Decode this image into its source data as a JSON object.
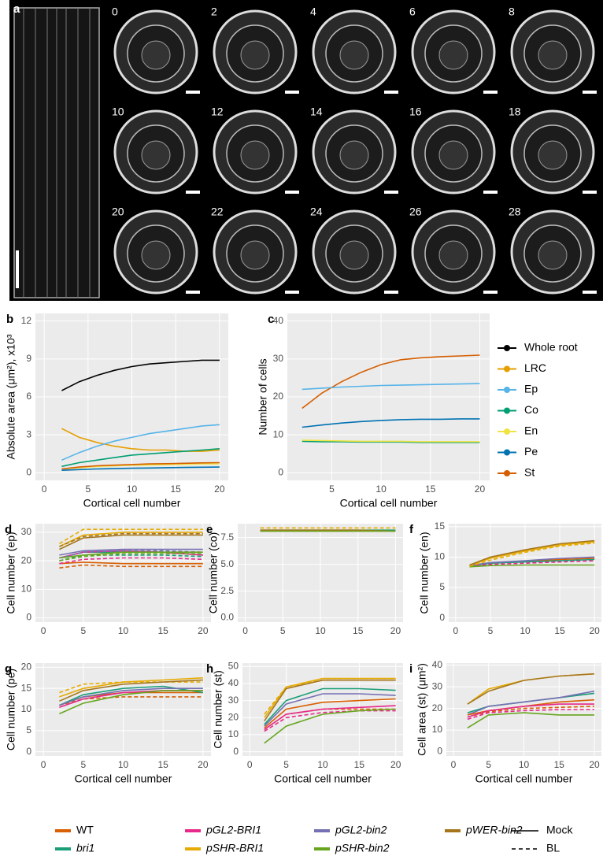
{
  "figure": {
    "panel_a": {
      "label": "a",
      "timepoints": [
        "0",
        "2",
        "4",
        "6",
        "8",
        "10",
        "12",
        "14",
        "16",
        "18",
        "20",
        "22",
        "24",
        "26",
        "28"
      ]
    },
    "legend": {
      "genotypes": [
        {
          "name": "WT",
          "color": "#d95f02",
          "italic": false
        },
        {
          "name": "bri1",
          "color": "#1b9e77",
          "italic": true
        },
        {
          "name": "pGL2-BRI1",
          "color": "#e7298a",
          "italic": true
        },
        {
          "name": "pSHR-BRI1",
          "color": "#e6ab02",
          "italic": true
        },
        {
          "name": "pGL2-bin2",
          "color": "#7570b3",
          "italic": true
        },
        {
          "name": "pSHR-bin2",
          "color": "#66a61e",
          "italic": true
        },
        {
          "name": "pWER-bin2",
          "color": "#a6761d",
          "italic": true
        }
      ],
      "treatments": [
        {
          "name": "Mock",
          "dashed": false
        },
        {
          "name": "BL",
          "dashed": true
        }
      ]
    }
  },
  "chart_data": [
    {
      "type": "line",
      "panel": "b",
      "xlabel": "Cortical cell number",
      "ylabel": "Absolute area (μm²), x10³",
      "xlim": [
        -1,
        21
      ],
      "ylim": [
        -0.6,
        12.6
      ],
      "xticks": [
        0,
        5,
        10,
        15,
        20
      ],
      "yticks": [
        0,
        3,
        6,
        9,
        12
      ],
      "grid": true,
      "x": [
        2,
        4,
        6,
        8,
        10,
        12,
        14,
        16,
        18,
        20
      ],
      "series": [
        {
          "name": "Whole root",
          "color": "#000000",
          "values": [
            6.5,
            7.2,
            7.7,
            8.1,
            8.4,
            8.6,
            8.7,
            8.8,
            8.9,
            8.9
          ]
        },
        {
          "name": "LRC",
          "color": "#e69f00",
          "values": [
            3.5,
            2.8,
            2.4,
            2.1,
            1.9,
            1.8,
            1.8,
            1.7,
            1.7,
            1.8
          ]
        },
        {
          "name": "Ep",
          "color": "#56b4e9",
          "values": [
            1.0,
            1.6,
            2.1,
            2.5,
            2.8,
            3.1,
            3.3,
            3.5,
            3.7,
            3.8
          ]
        },
        {
          "name": "Co",
          "color": "#009e73",
          "values": [
            0.5,
            0.8,
            1.0,
            1.2,
            1.4,
            1.5,
            1.6,
            1.7,
            1.8,
            1.9
          ]
        },
        {
          "name": "En",
          "color": "#f0e442",
          "values": [
            0.3,
            0.4,
            0.5,
            0.55,
            0.6,
            0.62,
            0.65,
            0.67,
            0.7,
            0.7
          ]
        },
        {
          "name": "Pe",
          "color": "#0072b2",
          "values": [
            0.2,
            0.25,
            0.3,
            0.33,
            0.36,
            0.38,
            0.4,
            0.42,
            0.44,
            0.45
          ]
        },
        {
          "name": "St",
          "color": "#d55e00",
          "values": [
            0.3,
            0.45,
            0.55,
            0.6,
            0.65,
            0.7,
            0.72,
            0.75,
            0.78,
            0.8
          ]
        }
      ]
    },
    {
      "type": "line",
      "panel": "c",
      "xlabel": "Cortical cell number",
      "ylabel": "Number of cells",
      "xlim": [
        0.5,
        21
      ],
      "ylim": [
        -2,
        42
      ],
      "xticks": [
        5,
        10,
        15,
        20
      ],
      "yticks": [
        0,
        10,
        20,
        30,
        40
      ],
      "grid": true,
      "x": [
        2,
        4,
        6,
        8,
        10,
        12,
        14,
        16,
        18,
        20
      ],
      "series": [
        {
          "color": "#d55e00",
          "values": [
            17,
            21,
            24,
            26.5,
            28.5,
            29.8,
            30.3,
            30.6,
            30.8,
            31
          ]
        },
        {
          "color": "#56b4e9",
          "values": [
            22,
            22.3,
            22.6,
            22.8,
            23,
            23.1,
            23.2,
            23.3,
            23.4,
            23.5
          ]
        },
        {
          "color": "#0072b2",
          "values": [
            12,
            12.6,
            13.1,
            13.5,
            13.8,
            14,
            14.1,
            14.1,
            14.2,
            14.2
          ]
        },
        {
          "color": "#009e73",
          "values": [
            8.3,
            8.2,
            8.2,
            8.1,
            8.1,
            8.1,
            8.0,
            8.0,
            8.0,
            8.0
          ]
        },
        {
          "color": "#f0e442",
          "values": [
            8.6,
            8.5,
            8.4,
            8.3,
            8.3,
            8.3,
            8.2,
            8.2,
            8.2,
            8.2
          ]
        }
      ]
    },
    {
      "type": "line",
      "panel": "d",
      "ylabel": "Cell number (ep)",
      "xlim": [
        -1,
        21
      ],
      "ylim": [
        -1.5,
        33
      ],
      "xticks": [
        0,
        5,
        10,
        15,
        20
      ],
      "yticks": [
        0,
        10,
        20,
        30
      ],
      "grid": true,
      "x": [
        2,
        5,
        10,
        15,
        20
      ],
      "series": [
        {
          "color": "#d95f02",
          "dashed": false,
          "values": [
            19,
            19.5,
            19,
            19,
            19
          ]
        },
        {
          "color": "#d95f02",
          "dashed": true,
          "values": [
            17.5,
            18.5,
            18,
            18,
            18
          ]
        },
        {
          "color": "#1b9e77",
          "dashed": false,
          "values": [
            21,
            23,
            23,
            23,
            22
          ]
        },
        {
          "color": "#1b9e77",
          "dashed": true,
          "values": [
            20,
            22,
            22,
            22,
            21.5
          ]
        },
        {
          "color": "#e7298a",
          "dashed": false,
          "values": [
            21,
            23,
            23.5,
            23,
            22
          ]
        },
        {
          "color": "#e7298a",
          "dashed": true,
          "values": [
            19,
            20.5,
            21,
            21,
            20.5
          ]
        },
        {
          "color": "#e6ab02",
          "dashed": false,
          "values": [
            25,
            29,
            30,
            30,
            30
          ]
        },
        {
          "color": "#e6ab02",
          "dashed": true,
          "values": [
            26,
            31,
            31,
            31,
            31
          ]
        },
        {
          "color": "#7570b3",
          "dashed": false,
          "values": [
            22,
            23.5,
            24,
            24,
            24
          ]
        },
        {
          "color": "#7570b3",
          "dashed": true,
          "values": [
            21,
            23,
            23.5,
            23.5,
            23
          ]
        },
        {
          "color": "#66a61e",
          "dashed": false,
          "values": [
            21,
            22,
            23,
            23,
            23
          ]
        },
        {
          "color": "#66a61e",
          "dashed": true,
          "values": [
            20,
            21.5,
            22.5,
            22.5,
            22.5
          ]
        },
        {
          "color": "#a6761d",
          "dashed": false,
          "values": [
            24,
            28,
            29,
            29,
            29
          ]
        },
        {
          "color": "#a6761d",
          "dashed": true,
          "values": [
            25,
            28.5,
            29.5,
            29.5,
            29.5
          ]
        }
      ]
    },
    {
      "type": "line",
      "panel": "e",
      "ylabel": "Cell number (co)",
      "xlim": [
        -1,
        21
      ],
      "ylim": [
        -0.4,
        8.8
      ],
      "xticks": [
        0,
        5,
        10,
        15,
        20
      ],
      "yticks": [
        {
          "value": 0,
          "label": "0.0"
        },
        {
          "value": 2.5,
          "label": "2.5"
        },
        {
          "value": 5,
          "label": "5.0"
        },
        {
          "value": 7.5,
          "label": "7.5"
        }
      ],
      "grid": true,
      "x": [
        2,
        5,
        10,
        15,
        20
      ],
      "series": [
        {
          "color": "#d95f02",
          "dashed": false,
          "values": [
            8.1,
            8.1,
            8.1,
            8.1,
            8.1
          ]
        },
        {
          "color": "#1b9e77",
          "dashed": false,
          "values": [
            8.2,
            8.2,
            8.2,
            8.2,
            8.2
          ]
        },
        {
          "color": "#e6ab02",
          "dashed": true,
          "values": [
            8.4,
            8.4,
            8.4,
            8.4,
            8.4
          ]
        },
        {
          "color": "#a6761d",
          "dashed": false,
          "values": [
            8.2,
            8.2,
            8.2,
            8.2,
            8.1
          ]
        },
        {
          "color": "#66a61e",
          "dashed": false,
          "values": [
            8.1,
            8.1,
            8.1,
            8.1,
            8.1
          ]
        }
      ]
    },
    {
      "type": "line",
      "panel": "f",
      "ylabel": "Cell number (en)",
      "xlim": [
        -1,
        21
      ],
      "ylim": [
        -0.7,
        15.5
      ],
      "xticks": [
        0,
        5,
        10,
        15,
        20
      ],
      "yticks": [
        0,
        5,
        10,
        15
      ],
      "grid": true,
      "x": [
        2,
        5,
        10,
        15,
        20
      ],
      "series": [
        {
          "color": "#d95f02",
          "dashed": false,
          "values": [
            8.5,
            9,
            9.3,
            9.6,
            9.8
          ]
        },
        {
          "color": "#1b9e77",
          "dashed": false,
          "values": [
            8.5,
            9,
            9.2,
            9.4,
            9.6
          ]
        },
        {
          "color": "#e7298a",
          "dashed": true,
          "values": [
            8.5,
            8.8,
            9,
            9.2,
            9.4
          ]
        },
        {
          "color": "#7570b3",
          "dashed": false,
          "values": [
            8.6,
            9.1,
            9.4,
            9.8,
            10
          ]
        },
        {
          "color": "#66a61e",
          "dashed": false,
          "values": [
            8.4,
            8.6,
            8.7,
            8.7,
            8.7
          ]
        },
        {
          "color": "#e6ab02",
          "dashed": false,
          "values": [
            8.6,
            9.8,
            11,
            12,
            12.5
          ]
        },
        {
          "color": "#e6ab02",
          "dashed": true,
          "values": [
            8.5,
            9.5,
            10.8,
            11.8,
            12.3
          ]
        },
        {
          "color": "#a6761d",
          "dashed": false,
          "values": [
            8.7,
            10,
            11.2,
            12.2,
            12.7
          ]
        }
      ]
    },
    {
      "type": "line",
      "panel": "g",
      "ylabel": "Cell number (pe)",
      "xlabel": "Cortical cell number",
      "xlim": [
        -1,
        21
      ],
      "ylim": [
        -1,
        21
      ],
      "xticks": [
        0,
        5,
        10,
        15,
        20
      ],
      "yticks": [
        0,
        5,
        10,
        15,
        20
      ],
      "grid": true,
      "x": [
        2,
        5,
        10,
        15,
        20
      ],
      "series": [
        {
          "color": "#d95f02",
          "dashed": false,
          "values": [
            11,
            13,
            14,
            14,
            14
          ]
        },
        {
          "color": "#d95f02",
          "dashed": true,
          "values": [
            11,
            12.5,
            13,
            13,
            13
          ]
        },
        {
          "color": "#1b9e77",
          "dashed": false,
          "values": [
            11,
            13.5,
            15,
            15.5,
            14
          ]
        },
        {
          "color": "#e7298a",
          "dashed": false,
          "values": [
            10.5,
            12.5,
            14,
            14.5,
            14.5
          ]
        },
        {
          "color": "#7570b3",
          "dashed": false,
          "values": [
            11,
            13,
            14.5,
            15,
            15
          ]
        },
        {
          "color": "#66a61e",
          "dashed": false,
          "values": [
            9,
            11.5,
            13.5,
            14.5,
            14.5
          ]
        },
        {
          "color": "#e6ab02",
          "dashed": false,
          "values": [
            13,
            15,
            16.5,
            17,
            17.5
          ]
        },
        {
          "color": "#e6ab02",
          "dashed": true,
          "values": [
            14,
            16,
            16.5,
            16.5,
            16.5
          ]
        },
        {
          "color": "#a6761d",
          "dashed": false,
          "values": [
            12,
            14.5,
            16,
            16.5,
            17
          ]
        }
      ]
    },
    {
      "type": "line",
      "panel": "h",
      "ylabel": "Cell number (st)",
      "xlabel": "Cortical cell number",
      "xlim": [
        -1,
        21
      ],
      "ylim": [
        -2.5,
        52
      ],
      "xticks": [
        0,
        5,
        10,
        15,
        20
      ],
      "yticks": [
        0,
        10,
        20,
        30,
        40,
        50
      ],
      "grid": true,
      "x": [
        2,
        5,
        10,
        15,
        20
      ],
      "series": [
        {
          "color": "#e6ab02",
          "dashed": false,
          "values": [
            20,
            38,
            43,
            43,
            43
          ]
        },
        {
          "color": "#e6ab02",
          "dashed": true,
          "values": [
            22,
            38,
            42,
            42,
            42
          ]
        },
        {
          "color": "#a6761d",
          "dashed": false,
          "values": [
            18,
            37,
            42,
            42,
            42
          ]
        },
        {
          "color": "#1b9e77",
          "dashed": false,
          "values": [
            16,
            30,
            37,
            37,
            36
          ]
        },
        {
          "color": "#7570b3",
          "dashed": false,
          "values": [
            15,
            28,
            34,
            34,
            33
          ]
        },
        {
          "color": "#d95f02",
          "dashed": false,
          "values": [
            14,
            25,
            29,
            30,
            31
          ]
        },
        {
          "color": "#d95f02",
          "dashed": true,
          "values": [
            13,
            22,
            25,
            25,
            25
          ]
        },
        {
          "color": "#e7298a",
          "dashed": false,
          "values": [
            13,
            22,
            25,
            26,
            27
          ]
        },
        {
          "color": "#e7298a",
          "dashed": true,
          "values": [
            12,
            20,
            23,
            24,
            24
          ]
        },
        {
          "color": "#66a61e",
          "dashed": false,
          "values": [
            5,
            15,
            22,
            24,
            25
          ]
        }
      ]
    },
    {
      "type": "line",
      "panel": "i",
      "ylabel": "Cell area (st) (μm²)",
      "xlabel": "Cortical cell number",
      "xlim": [
        -1,
        21
      ],
      "ylim": [
        -2,
        41
      ],
      "xticks": [
        0,
        5,
        10,
        15,
        20
      ],
      "yticks": [
        0,
        10,
        20,
        30,
        40
      ],
      "grid": true,
      "x": [
        2,
        5,
        10,
        15,
        20
      ],
      "series": [
        {
          "color": "#e6ab02",
          "dashed": false,
          "values": [
            22,
            29,
            33,
            35,
            36
          ]
        },
        {
          "color": "#a6761d",
          "dashed": false,
          "values": [
            22,
            28,
            33,
            35,
            36
          ]
        },
        {
          "color": "#1b9e77",
          "dashed": false,
          "values": [
            18,
            21,
            23,
            25,
            27
          ]
        },
        {
          "color": "#7570b3",
          "dashed": false,
          "values": [
            17,
            21,
            23,
            25,
            28
          ]
        },
        {
          "color": "#d95f02",
          "dashed": false,
          "values": [
            17,
            19,
            21,
            23,
            24
          ]
        },
        {
          "color": "#d95f02",
          "dashed": true,
          "values": [
            16,
            18.5,
            20,
            20.5,
            21
          ]
        },
        {
          "color": "#e7298a",
          "dashed": false,
          "values": [
            16,
            19,
            21,
            22,
            22
          ]
        },
        {
          "color": "#e7298a",
          "dashed": true,
          "values": [
            15,
            18,
            19,
            19.5,
            19.5
          ]
        },
        {
          "color": "#66a61e",
          "dashed": false,
          "values": [
            11,
            17,
            18,
            17,
            17
          ]
        }
      ]
    }
  ]
}
